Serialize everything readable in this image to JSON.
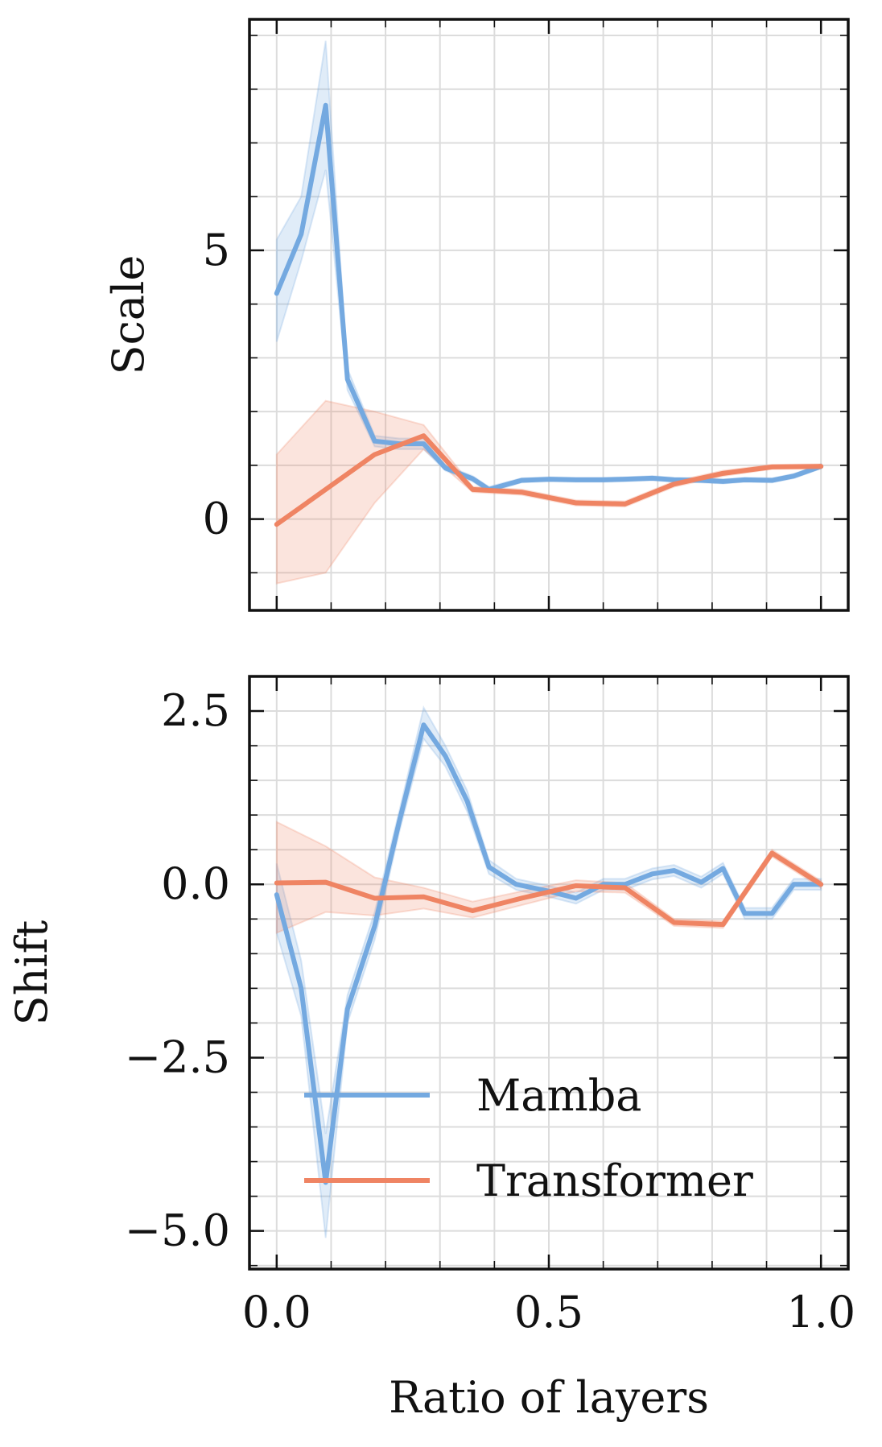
{
  "colors": {
    "mamba": "#74a9e0",
    "transformer": "#ef8463",
    "mamba_band": "#74a9e0",
    "transformer_band": "#ef8463"
  },
  "chart_data": [
    {
      "id": "scale",
      "type": "line",
      "ylabel": "Scale",
      "xlabel": "",
      "xlim": [
        -0.05,
        1.05
      ],
      "ylim": [
        -1.7,
        9.3
      ],
      "yticks": [
        0,
        5
      ],
      "ytick_labels": [
        "0",
        "5"
      ],
      "xticks": [
        0,
        0.5,
        1
      ],
      "xtick_labels": [],
      "grid": true,
      "series": [
        {
          "name": "Mamba",
          "x": [
            0,
            0.045,
            0.09,
            0.13,
            0.18,
            0.225,
            0.27,
            0.31,
            0.36,
            0.39,
            0.45,
            0.5,
            0.55,
            0.6,
            0.64,
            0.69,
            0.73,
            0.78,
            0.82,
            0.86,
            0.91,
            0.95,
            1.0
          ],
          "y": [
            4.2,
            5.3,
            7.7,
            2.6,
            1.45,
            1.4,
            1.4,
            0.95,
            0.75,
            0.55,
            0.72,
            0.74,
            0.73,
            0.73,
            0.74,
            0.76,
            0.73,
            0.72,
            0.7,
            0.73,
            0.72,
            0.8,
            0.98
          ],
          "band_lower": [
            3.3,
            4.8,
            6.5,
            2.4,
            1.35,
            1.3,
            1.3,
            0.9,
            0.7,
            0.5,
            0.68,
            0.7,
            0.69,
            0.69,
            0.7,
            0.72,
            0.69,
            0.68,
            0.66,
            0.69,
            0.68,
            0.76,
            0.94
          ],
          "band_upper": [
            5.2,
            6.0,
            8.9,
            2.8,
            1.55,
            1.5,
            1.5,
            1.0,
            0.8,
            0.6,
            0.76,
            0.78,
            0.77,
            0.77,
            0.78,
            0.8,
            0.77,
            0.76,
            0.74,
            0.77,
            0.76,
            0.84,
            1.02
          ]
        },
        {
          "name": "Transformer",
          "x": [
            0,
            0.09,
            0.18,
            0.27,
            0.36,
            0.45,
            0.55,
            0.64,
            0.73,
            0.82,
            0.91,
            1.0
          ],
          "y": [
            -0.1,
            0.55,
            1.2,
            1.55,
            0.55,
            0.5,
            0.3,
            0.28,
            0.65,
            0.85,
            0.97,
            0.98
          ],
          "band_lower": [
            -1.2,
            -1.0,
            0.3,
            1.3,
            0.5,
            0.45,
            0.25,
            0.23,
            0.6,
            0.8,
            0.93,
            0.94
          ],
          "band_upper": [
            1.2,
            2.2,
            2.0,
            1.75,
            0.6,
            0.55,
            0.35,
            0.33,
            0.7,
            0.9,
            1.01,
            1.02
          ]
        }
      ]
    },
    {
      "id": "shift",
      "type": "line",
      "ylabel": "Shift",
      "xlabel": "Ratio of layers",
      "xlim": [
        -0.05,
        1.05
      ],
      "ylim": [
        -5.55,
        3.0
      ],
      "yticks": [
        -5.0,
        -2.5,
        0.0,
        2.5
      ],
      "ytick_labels": [
        "−5.0",
        "−2.5",
        "0.0",
        "2.5"
      ],
      "xticks": [
        0,
        0.5,
        1
      ],
      "xtick_labels": [
        "0.0",
        "0.5",
        "1.0"
      ],
      "grid": true,
      "legend": {
        "placement": "lower-right",
        "entries": [
          "Mamba",
          "Transformer"
        ]
      },
      "series": [
        {
          "name": "Mamba",
          "x": [
            0,
            0.045,
            0.09,
            0.13,
            0.18,
            0.225,
            0.27,
            0.31,
            0.35,
            0.39,
            0.44,
            0.5,
            0.55,
            0.6,
            0.64,
            0.69,
            0.73,
            0.78,
            0.82,
            0.86,
            0.91,
            0.95,
            1.0
          ],
          "y": [
            -0.15,
            -1.5,
            -4.3,
            -1.8,
            -0.6,
            0.9,
            2.3,
            1.85,
            1.2,
            0.25,
            0.0,
            -0.1,
            -0.2,
            0.0,
            0.0,
            0.15,
            0.2,
            0.03,
            0.23,
            -0.42,
            -0.42,
            0.0,
            0.0
          ],
          "band_lower": [
            -0.7,
            -1.9,
            -5.1,
            -2.0,
            -0.8,
            0.75,
            2.1,
            1.7,
            1.05,
            0.15,
            -0.08,
            -0.18,
            -0.28,
            -0.08,
            -0.08,
            0.07,
            0.12,
            -0.05,
            0.15,
            -0.5,
            -0.5,
            -0.08,
            -0.08
          ],
          "band_upper": [
            0.3,
            -1.1,
            -3.6,
            -1.6,
            -0.4,
            1.05,
            2.55,
            2.0,
            1.35,
            0.35,
            0.08,
            -0.02,
            -0.12,
            0.08,
            0.08,
            0.23,
            0.28,
            0.11,
            0.31,
            -0.34,
            -0.34,
            0.08,
            0.08
          ]
        },
        {
          "name": "Transformer",
          "x": [
            0,
            0.09,
            0.18,
            0.27,
            0.36,
            0.45,
            0.55,
            0.64,
            0.73,
            0.82,
            0.91,
            1.0
          ],
          "y": [
            0.02,
            0.03,
            -0.2,
            -0.18,
            -0.38,
            -0.2,
            -0.02,
            -0.05,
            -0.55,
            -0.58,
            0.45,
            0.0
          ],
          "band_lower": [
            -0.7,
            -0.4,
            -0.45,
            -0.35,
            -0.48,
            -0.3,
            -0.1,
            -0.12,
            -0.6,
            -0.63,
            0.4,
            -0.05
          ],
          "band_upper": [
            0.9,
            0.55,
            0.1,
            -0.05,
            -0.25,
            -0.1,
            0.06,
            0.02,
            -0.5,
            -0.53,
            0.5,
            0.05
          ]
        }
      ]
    }
  ]
}
